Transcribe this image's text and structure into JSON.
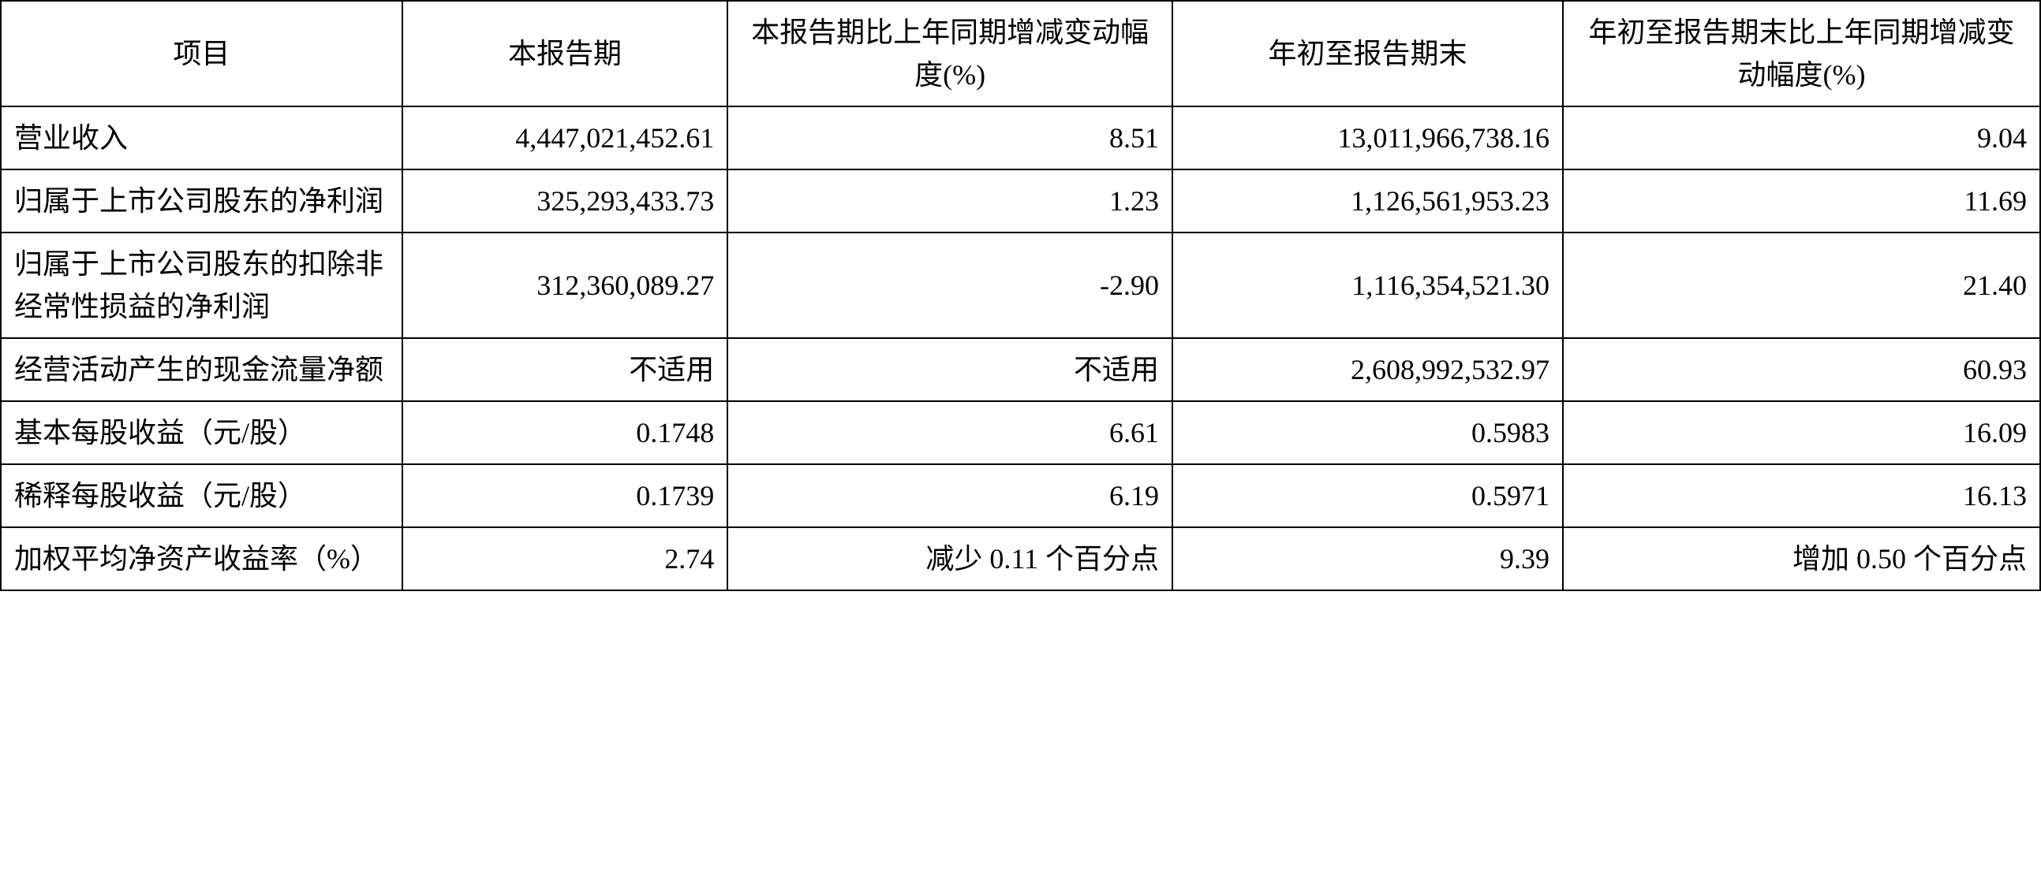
{
  "table": {
    "type": "table",
    "background_color": "#ffffff",
    "border_color": "#000000",
    "border_width": 2,
    "font_size": 36,
    "text_color": "#000000",
    "font_family": "SimSun",
    "columns": [
      {
        "key": "item",
        "header": "项目",
        "align_header": "center",
        "align_body": "left",
        "width_pct": 18.5
      },
      {
        "key": "current_period",
        "header": "本报告期",
        "align_header": "center",
        "align_body": "right",
        "width_pct": 15
      },
      {
        "key": "current_change_pct",
        "header": "本报告期比上年同期增减变动幅度(%)",
        "align_header": "center",
        "align_body": "right",
        "width_pct": 20.5
      },
      {
        "key": "ytd",
        "header": "年初至报告期末",
        "align_header": "center",
        "align_body": "right",
        "width_pct": 18
      },
      {
        "key": "ytd_change_pct",
        "header": "年初至报告期末比上年同期增减变动幅度(%)",
        "align_header": "center",
        "align_body": "right",
        "width_pct": 22
      }
    ],
    "rows": [
      {
        "item": "营业收入",
        "current_period": "4,447,021,452.61",
        "current_change_pct": "8.51",
        "ytd": "13,011,966,738.16",
        "ytd_change_pct": "9.04"
      },
      {
        "item": "归属于上市公司股东的净利润",
        "current_period": "325,293,433.73",
        "current_change_pct": "1.23",
        "ytd": "1,126,561,953.23",
        "ytd_change_pct": "11.69"
      },
      {
        "item": "归属于上市公司股东的扣除非经常性损益的净利润",
        "current_period": "312,360,089.27",
        "current_change_pct": "-2.90",
        "ytd": "1,116,354,521.30",
        "ytd_change_pct": "21.40"
      },
      {
        "item": "经营活动产生的现金流量净额",
        "current_period": "不适用",
        "current_change_pct": "不适用",
        "ytd": "2,608,992,532.97",
        "ytd_change_pct": "60.93"
      },
      {
        "item": "基本每股收益（元/股）",
        "current_period": "0.1748",
        "current_change_pct": "6.61",
        "ytd": "0.5983",
        "ytd_change_pct": "16.09"
      },
      {
        "item": "稀释每股收益（元/股）",
        "current_period": "0.1739",
        "current_change_pct": "6.19",
        "ytd": "0.5971",
        "ytd_change_pct": "16.13"
      },
      {
        "item": "加权平均净资产收益率（%）",
        "current_period": "2.74",
        "current_change_pct": "减少 0.11 个百分点",
        "ytd": "9.39",
        "ytd_change_pct": "增加 0.50 个百分点"
      }
    ]
  }
}
